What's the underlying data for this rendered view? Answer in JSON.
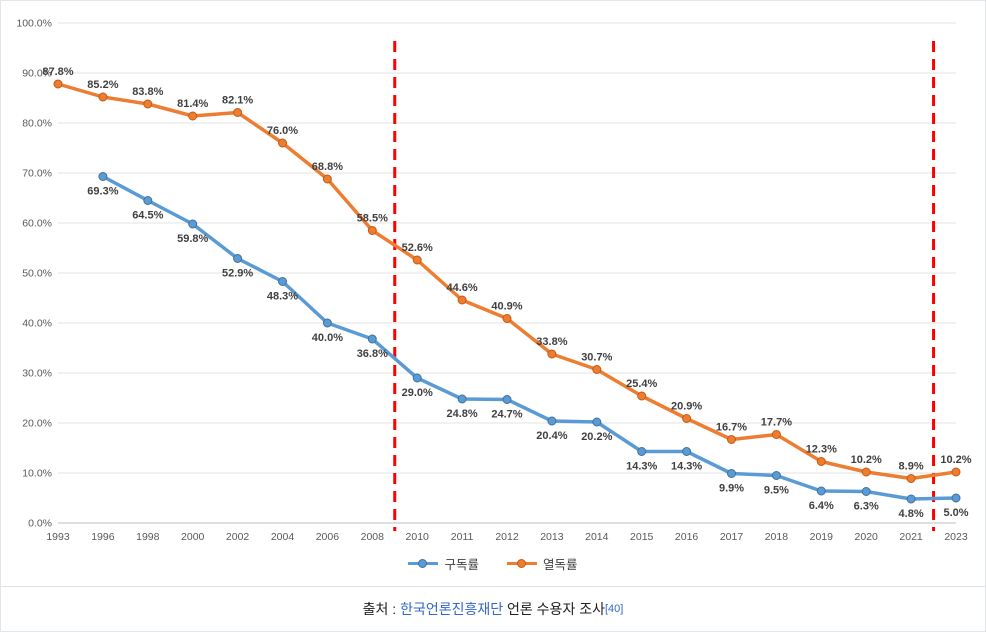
{
  "chart_data": {
    "type": "line",
    "title": "",
    "xlabel": "",
    "ylabel": "",
    "categories": [
      "1993",
      "1996",
      "1998",
      "2000",
      "2002",
      "2004",
      "2006",
      "2008",
      "2010",
      "2011",
      "2012",
      "2013",
      "2014",
      "2015",
      "2016",
      "2017",
      "2018",
      "2019",
      "2020",
      "2021",
      "2023"
    ],
    "series": [
      {
        "name": "구독률",
        "color": "#5b9bd5",
        "edge": "#41719c",
        "label_position": "below",
        "values": [
          null,
          69.3,
          64.5,
          59.8,
          52.9,
          48.3,
          40.0,
          36.8,
          29.0,
          24.8,
          24.7,
          20.4,
          20.2,
          14.3,
          14.3,
          9.9,
          9.5,
          6.4,
          6.3,
          4.8,
          5.0
        ]
      },
      {
        "name": "열독률",
        "color": "#ed7d31",
        "edge": "#c55a11",
        "label_position": "above",
        "values": [
          87.8,
          85.2,
          83.8,
          81.4,
          82.1,
          76.0,
          68.8,
          58.5,
          52.6,
          44.6,
          40.9,
          33.8,
          30.7,
          25.4,
          20.9,
          16.7,
          17.7,
          12.3,
          10.2,
          8.9,
          10.2
        ]
      }
    ],
    "ylim": [
      0,
      100
    ],
    "ytick_step": 10,
    "ytick_suffix": "%",
    "grid": true,
    "legend_position": "bottom",
    "annotations": {
      "vlines": [
        {
          "x_index": 7.5,
          "color": "#ff0000",
          "style": "dashed"
        },
        {
          "x_index": 19.5,
          "color": "#ff0000",
          "style": "dashed"
        }
      ]
    }
  },
  "footer": {
    "prefix": "출처 : ",
    "link": "한국언론진흥재단",
    "suffix": " 언론 수용자 조사",
    "ref": "[40]"
  },
  "colors": {
    "grid": "#e3e3e3",
    "axis": "#bfbfbf",
    "tick_text": "#595959",
    "data_label": "#3f3f3f",
    "link": "#3366cc",
    "vline": "#ff0000"
  }
}
